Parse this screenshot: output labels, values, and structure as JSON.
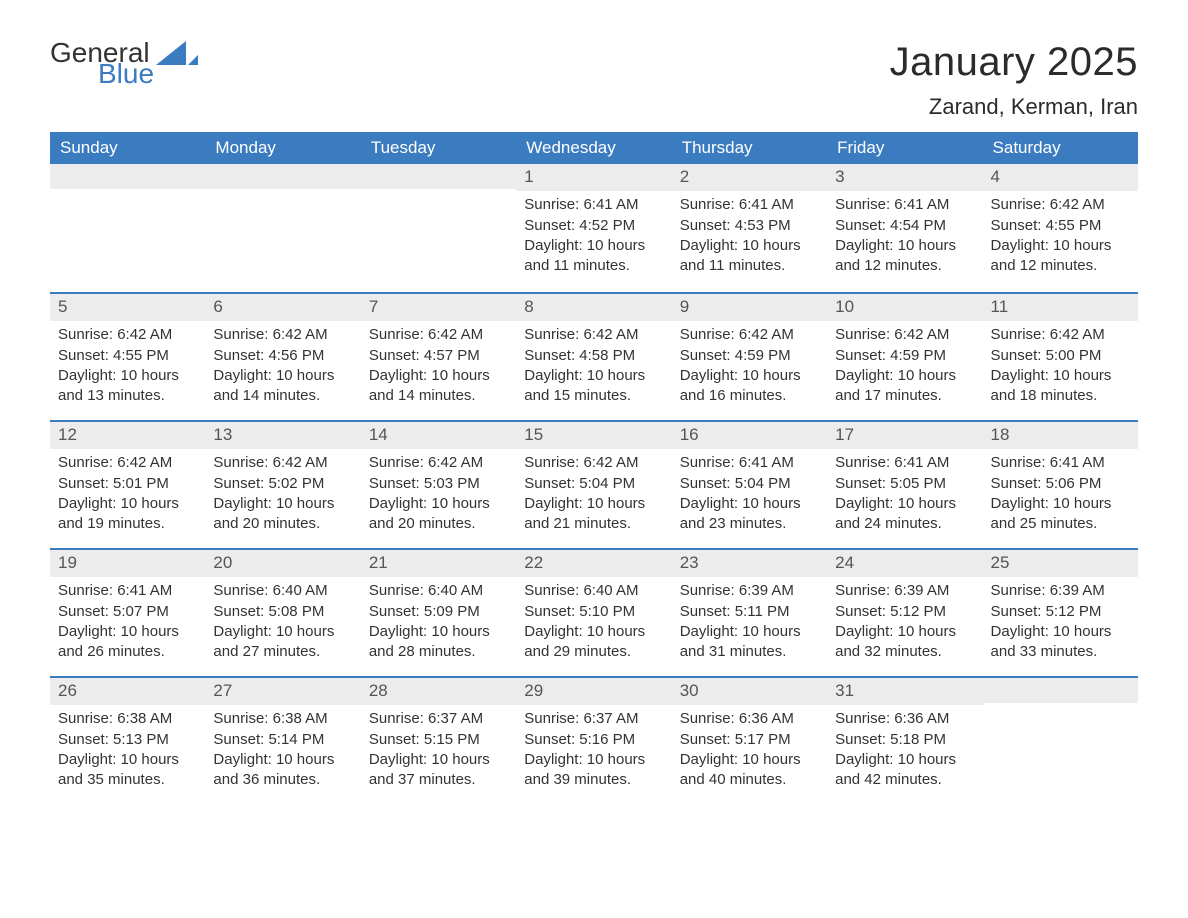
{
  "brand": {
    "general": "General",
    "blue": "Blue",
    "accent": "#3b7bbf"
  },
  "title": "January 2025",
  "location": "Zarand, Kerman, Iran",
  "colors": {
    "header_bg": "#3b7bbf",
    "header_fg": "#ffffff",
    "daynum_bg": "#ececec",
    "text": "#333333",
    "row_border": "#3b7bbf"
  },
  "fonts": {
    "title_size": 40,
    "location_size": 22,
    "dow_size": 17,
    "body_size": 15
  },
  "days_of_week": [
    "Sunday",
    "Monday",
    "Tuesday",
    "Wednesday",
    "Thursday",
    "Friday",
    "Saturday"
  ],
  "weeks": [
    [
      null,
      null,
      null,
      {
        "n": "1",
        "sunrise": "Sunrise: 6:41 AM",
        "sunset": "Sunset: 4:52 PM",
        "daylight": "Daylight: 10 hours and 11 minutes."
      },
      {
        "n": "2",
        "sunrise": "Sunrise: 6:41 AM",
        "sunset": "Sunset: 4:53 PM",
        "daylight": "Daylight: 10 hours and 11 minutes."
      },
      {
        "n": "3",
        "sunrise": "Sunrise: 6:41 AM",
        "sunset": "Sunset: 4:54 PM",
        "daylight": "Daylight: 10 hours and 12 minutes."
      },
      {
        "n": "4",
        "sunrise": "Sunrise: 6:42 AM",
        "sunset": "Sunset: 4:55 PM",
        "daylight": "Daylight: 10 hours and 12 minutes."
      }
    ],
    [
      {
        "n": "5",
        "sunrise": "Sunrise: 6:42 AM",
        "sunset": "Sunset: 4:55 PM",
        "daylight": "Daylight: 10 hours and 13 minutes."
      },
      {
        "n": "6",
        "sunrise": "Sunrise: 6:42 AM",
        "sunset": "Sunset: 4:56 PM",
        "daylight": "Daylight: 10 hours and 14 minutes."
      },
      {
        "n": "7",
        "sunrise": "Sunrise: 6:42 AM",
        "sunset": "Sunset: 4:57 PM",
        "daylight": "Daylight: 10 hours and 14 minutes."
      },
      {
        "n": "8",
        "sunrise": "Sunrise: 6:42 AM",
        "sunset": "Sunset: 4:58 PM",
        "daylight": "Daylight: 10 hours and 15 minutes."
      },
      {
        "n": "9",
        "sunrise": "Sunrise: 6:42 AM",
        "sunset": "Sunset: 4:59 PM",
        "daylight": "Daylight: 10 hours and 16 minutes."
      },
      {
        "n": "10",
        "sunrise": "Sunrise: 6:42 AM",
        "sunset": "Sunset: 4:59 PM",
        "daylight": "Daylight: 10 hours and 17 minutes."
      },
      {
        "n": "11",
        "sunrise": "Sunrise: 6:42 AM",
        "sunset": "Sunset: 5:00 PM",
        "daylight": "Daylight: 10 hours and 18 minutes."
      }
    ],
    [
      {
        "n": "12",
        "sunrise": "Sunrise: 6:42 AM",
        "sunset": "Sunset: 5:01 PM",
        "daylight": "Daylight: 10 hours and 19 minutes."
      },
      {
        "n": "13",
        "sunrise": "Sunrise: 6:42 AM",
        "sunset": "Sunset: 5:02 PM",
        "daylight": "Daylight: 10 hours and 20 minutes."
      },
      {
        "n": "14",
        "sunrise": "Sunrise: 6:42 AM",
        "sunset": "Sunset: 5:03 PM",
        "daylight": "Daylight: 10 hours and 20 minutes."
      },
      {
        "n": "15",
        "sunrise": "Sunrise: 6:42 AM",
        "sunset": "Sunset: 5:04 PM",
        "daylight": "Daylight: 10 hours and 21 minutes."
      },
      {
        "n": "16",
        "sunrise": "Sunrise: 6:41 AM",
        "sunset": "Sunset: 5:04 PM",
        "daylight": "Daylight: 10 hours and 23 minutes."
      },
      {
        "n": "17",
        "sunrise": "Sunrise: 6:41 AM",
        "sunset": "Sunset: 5:05 PM",
        "daylight": "Daylight: 10 hours and 24 minutes."
      },
      {
        "n": "18",
        "sunrise": "Sunrise: 6:41 AM",
        "sunset": "Sunset: 5:06 PM",
        "daylight": "Daylight: 10 hours and 25 minutes."
      }
    ],
    [
      {
        "n": "19",
        "sunrise": "Sunrise: 6:41 AM",
        "sunset": "Sunset: 5:07 PM",
        "daylight": "Daylight: 10 hours and 26 minutes."
      },
      {
        "n": "20",
        "sunrise": "Sunrise: 6:40 AM",
        "sunset": "Sunset: 5:08 PM",
        "daylight": "Daylight: 10 hours and 27 minutes."
      },
      {
        "n": "21",
        "sunrise": "Sunrise: 6:40 AM",
        "sunset": "Sunset: 5:09 PM",
        "daylight": "Daylight: 10 hours and 28 minutes."
      },
      {
        "n": "22",
        "sunrise": "Sunrise: 6:40 AM",
        "sunset": "Sunset: 5:10 PM",
        "daylight": "Daylight: 10 hours and 29 minutes."
      },
      {
        "n": "23",
        "sunrise": "Sunrise: 6:39 AM",
        "sunset": "Sunset: 5:11 PM",
        "daylight": "Daylight: 10 hours and 31 minutes."
      },
      {
        "n": "24",
        "sunrise": "Sunrise: 6:39 AM",
        "sunset": "Sunset: 5:12 PM",
        "daylight": "Daylight: 10 hours and 32 minutes."
      },
      {
        "n": "25",
        "sunrise": "Sunrise: 6:39 AM",
        "sunset": "Sunset: 5:12 PM",
        "daylight": "Daylight: 10 hours and 33 minutes."
      }
    ],
    [
      {
        "n": "26",
        "sunrise": "Sunrise: 6:38 AM",
        "sunset": "Sunset: 5:13 PM",
        "daylight": "Daylight: 10 hours and 35 minutes."
      },
      {
        "n": "27",
        "sunrise": "Sunrise: 6:38 AM",
        "sunset": "Sunset: 5:14 PM",
        "daylight": "Daylight: 10 hours and 36 minutes."
      },
      {
        "n": "28",
        "sunrise": "Sunrise: 6:37 AM",
        "sunset": "Sunset: 5:15 PM",
        "daylight": "Daylight: 10 hours and 37 minutes."
      },
      {
        "n": "29",
        "sunrise": "Sunrise: 6:37 AM",
        "sunset": "Sunset: 5:16 PM",
        "daylight": "Daylight: 10 hours and 39 minutes."
      },
      {
        "n": "30",
        "sunrise": "Sunrise: 6:36 AM",
        "sunset": "Sunset: 5:17 PM",
        "daylight": "Daylight: 10 hours and 40 minutes."
      },
      {
        "n": "31",
        "sunrise": "Sunrise: 6:36 AM",
        "sunset": "Sunset: 5:18 PM",
        "daylight": "Daylight: 10 hours and 42 minutes."
      },
      null
    ]
  ]
}
